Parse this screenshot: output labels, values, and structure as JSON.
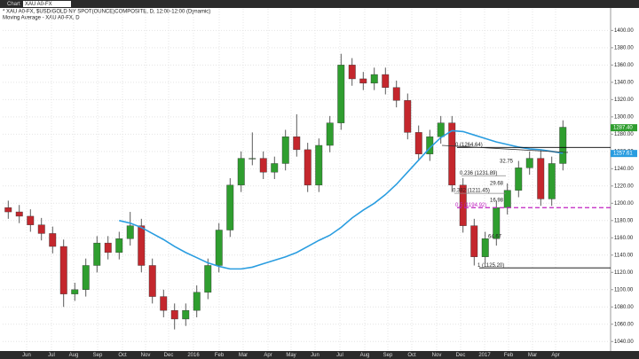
{
  "toolbar": {
    "tab": "Chart",
    "symbol": "XAU A0-FX"
  },
  "chart_data": {
    "type": "candlestick",
    "title": "* XAU A0-FX, $USD/GOLD NY SPOT(OUNCE)COMPOSITE, D, 12:00-12:00 (Dynamic)",
    "subtitle": "Moving Average - XAU A0-FX, D",
    "up_color": "#2f9e2f",
    "down_color": "#c4272d",
    "ma_color": "#2a9de0",
    "series": [
      {
        "name": "open",
        "values": [
          1195,
          1190,
          1185,
          1175,
          1165,
          1150,
          1095,
          1100,
          1128,
          1154,
          1143,
          1159,
          1174,
          1128,
          1092,
          1076,
          1066,
          1076,
          1097,
          1128,
          1169,
          1221,
          1252,
          1252,
          1236,
          1246,
          1277,
          1262,
          1221,
          1267,
          1293,
          1360,
          1344,
          1339,
          1349,
          1334,
          1319,
          1282,
          1257,
          1277,
          1293,
          1221,
          1174,
          1138,
          1159,
          1195,
          1215,
          1241,
          1252,
          1205,
          1246
        ]
      },
      {
        "name": "high",
        "values": [
          1203,
          1198,
          1193,
          1183,
          1173,
          1158,
          1108,
          1136,
          1162,
          1162,
          1167,
          1190,
          1182,
          1136,
          1100,
          1084,
          1084,
          1105,
          1136,
          1177,
          1229,
          1260,
          1282,
          1260,
          1254,
          1285,
          1303,
          1270,
          1275,
          1301,
          1373,
          1368,
          1352,
          1357,
          1357,
          1342,
          1327,
          1290,
          1285,
          1301,
          1301,
          1229,
          1182,
          1167,
          1203,
          1223,
          1249,
          1260,
          1262,
          1254,
          1296
        ]
      },
      {
        "name": "low",
        "values": [
          1182,
          1177,
          1167,
          1157,
          1142,
          1080,
          1087,
          1092,
          1120,
          1135,
          1135,
          1151,
          1120,
          1084,
          1068,
          1054,
          1058,
          1068,
          1089,
          1120,
          1161,
          1213,
          1244,
          1228,
          1228,
          1238,
          1254,
          1213,
          1213,
          1259,
          1285,
          1336,
          1331,
          1331,
          1326,
          1311,
          1274,
          1249,
          1249,
          1269,
          1213,
          1166,
          1128,
          1130,
          1151,
          1187,
          1207,
          1233,
          1197,
          1197,
          1238
        ]
      },
      {
        "name": "close",
        "values": [
          1190,
          1185,
          1175,
          1165,
          1150,
          1095,
          1100,
          1128,
          1154,
          1143,
          1159,
          1174,
          1128,
          1092,
          1076,
          1066,
          1076,
          1097,
          1128,
          1169,
          1221,
          1252,
          1252,
          1236,
          1246,
          1277,
          1262,
          1221,
          1267,
          1293,
          1360,
          1344,
          1339,
          1349,
          1334,
          1319,
          1282,
          1257,
          1277,
          1293,
          1221,
          1174,
          1138,
          1159,
          1195,
          1215,
          1241,
          1252,
          1205,
          1246,
          1288
        ]
      },
      {
        "name": "moving_average",
        "values": [
          null,
          null,
          null,
          null,
          null,
          null,
          null,
          null,
          null,
          null,
          1180,
          1177,
          1172,
          1165,
          1158,
          1150,
          1143,
          1137,
          1131,
          1127,
          1124,
          1124,
          1126,
          1130,
          1134,
          1138,
          1143,
          1150,
          1157,
          1163,
          1172,
          1183,
          1192,
          1200,
          1210,
          1222,
          1236,
          1250,
          1264,
          1276,
          1284,
          1283,
          1279,
          1275,
          1271,
          1268,
          1265,
          1263,
          1262,
          1260,
          1258
        ]
      }
    ],
    "xlim": [
      -0.5,
      54.3
    ],
    "xticks": [
      {
        "value": 1.66,
        "label": "Jun"
      },
      {
        "value": 3.9,
        "label": "Jul"
      },
      {
        "value": 5.9,
        "label": "Aug"
      },
      {
        "value": 8.06,
        "label": "Sep"
      },
      {
        "value": 10.3,
        "label": "Oct"
      },
      {
        "value": 12.38,
        "label": "Nov"
      },
      {
        "value": 14.46,
        "label": "Dec"
      },
      {
        "value": 16.7,
        "label": "2016"
      },
      {
        "value": 19.02,
        "label": "Feb"
      },
      {
        "value": 21.18,
        "label": "Mar"
      },
      {
        "value": 23.42,
        "label": "Apr"
      },
      {
        "value": 25.5,
        "label": "May"
      },
      {
        "value": 27.66,
        "label": "Jun"
      },
      {
        "value": 29.9,
        "label": "Jul"
      },
      {
        "value": 32.14,
        "label": "Aug"
      },
      {
        "value": 34.22,
        "label": "Sep"
      },
      {
        "value": 36.38,
        "label": "Oct"
      },
      {
        "value": 38.62,
        "label": "Nov"
      },
      {
        "value": 40.78,
        "label": "Dec"
      },
      {
        "value": 42.94,
        "label": "2017"
      },
      {
        "value": 45.1,
        "label": "Feb"
      },
      {
        "value": 47.26,
        "label": "Mar"
      },
      {
        "value": 49.34,
        "label": "Apr"
      }
    ],
    "ylim": [
      1030,
      1425
    ],
    "yticks": [
      {
        "value": 1040,
        "label": "1040.00"
      },
      {
        "value": 1060,
        "label": "1060.00"
      },
      {
        "value": 1080,
        "label": "1080.00"
      },
      {
        "value": 1100,
        "label": "1100.00"
      },
      {
        "value": 1120,
        "label": "1120.00"
      },
      {
        "value": 1140,
        "label": "1140.00"
      },
      {
        "value": 1160,
        "label": "1160.00"
      },
      {
        "value": 1180,
        "label": "1180.00"
      },
      {
        "value": 1200,
        "label": "1200.00"
      },
      {
        "value": 1220,
        "label": "1220.00"
      },
      {
        "value": 1240,
        "label": "1240.00"
      },
      {
        "value": 1260,
        "label": "1260.00"
      },
      {
        "value": 1280,
        "label": "1280.00"
      },
      {
        "value": 1300,
        "label": "1300.00"
      },
      {
        "value": 1320,
        "label": "1320.00"
      },
      {
        "value": 1340,
        "label": "1340.00"
      },
      {
        "value": 1360,
        "label": "1360.00"
      },
      {
        "value": 1380,
        "label": "1380.00"
      },
      {
        "value": 1400,
        "label": "1400.00"
      }
    ],
    "grid": true,
    "fib_levels": [
      {
        "value": 1264.64,
        "label": "0 (1264.64)",
        "color": "#000000"
      },
      {
        "value": 1231.89,
        "label": "0.236 (1231.89)",
        "color": "#888888"
      },
      {
        "value": 1211.45,
        "label": "0.382 (1211.45)",
        "color": "#888888"
      },
      {
        "value": 1194.92,
        "label": "0.5 (1194.92)",
        "color": "#c020c0"
      },
      {
        "value": 1125.2,
        "label": "1 (1125.20)",
        "color": "#000000"
      }
    ],
    "annotations": [
      "32.75",
      "29.68",
      "16.98",
      "64.67"
    ],
    "last_price": {
      "value": 1287.4,
      "label": "1287.40",
      "color": "#2f9e2f"
    },
    "ma_last": {
      "value": 1257.61,
      "label": "1257.61",
      "color": "#2a9de0"
    }
  }
}
